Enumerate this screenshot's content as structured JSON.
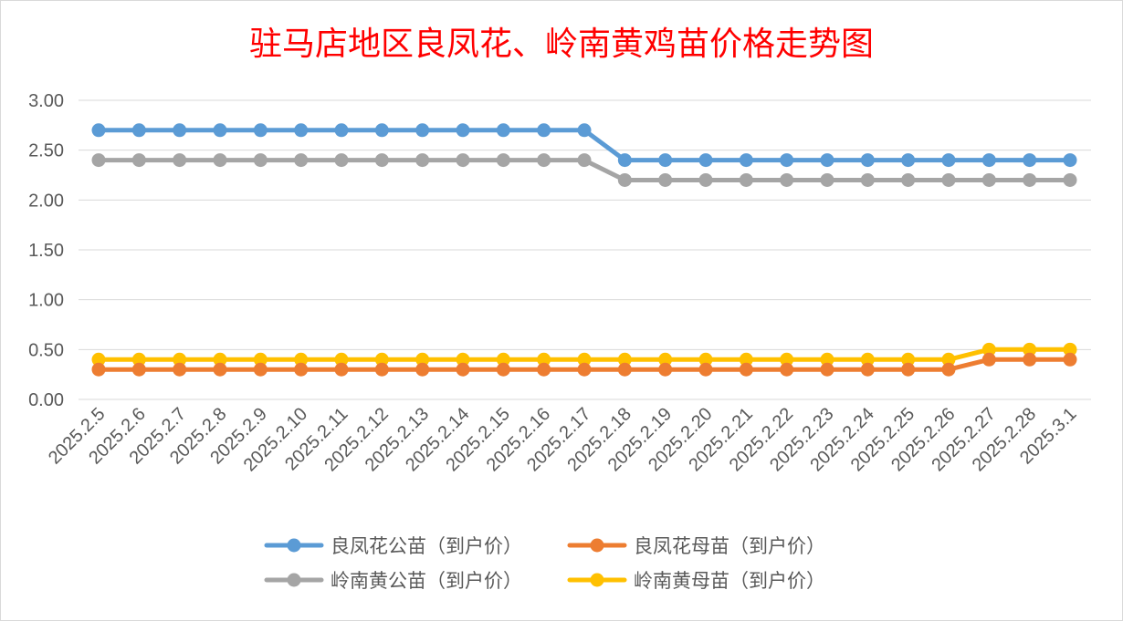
{
  "chart_data": {
    "type": "line",
    "title": "驻马店地区良凤花、岭南黄鸡苗价格走势图",
    "categories": [
      "2025.2.5",
      "2025.2.6",
      "2025.2.7",
      "2025.2.8",
      "2025.2.9",
      "2025.2.10",
      "2025.2.11",
      "2025.2.12",
      "2025.2.13",
      "2025.2.14",
      "2025.2.15",
      "2025.2.16",
      "2025.2.17",
      "2025.2.18",
      "2025.2.19",
      "2025.2.20",
      "2025.2.21",
      "2025.2.22",
      "2025.2.23",
      "2025.2.24",
      "2025.2.25",
      "2025.2.26",
      "2025.2.27",
      "2025.2.28",
      "2025.3.1"
    ],
    "ylim": [
      0,
      3
    ],
    "yticks": [
      "0.00",
      "0.50",
      "1.00",
      "1.50",
      "2.00",
      "2.50",
      "3.00"
    ],
    "grid": true,
    "legend_position": "bottom",
    "series": [
      {
        "name": "良凤花公苗（到户价）",
        "color": "#5b9bd5",
        "values": [
          2.7,
          2.7,
          2.7,
          2.7,
          2.7,
          2.7,
          2.7,
          2.7,
          2.7,
          2.7,
          2.7,
          2.7,
          2.7,
          2.4,
          2.4,
          2.4,
          2.4,
          2.4,
          2.4,
          2.4,
          2.4,
          2.4,
          2.4,
          2.4,
          2.4
        ]
      },
      {
        "name": "良凤花母苗（到户价）",
        "color": "#ed7d31",
        "values": [
          0.3,
          0.3,
          0.3,
          0.3,
          0.3,
          0.3,
          0.3,
          0.3,
          0.3,
          0.3,
          0.3,
          0.3,
          0.3,
          0.3,
          0.3,
          0.3,
          0.3,
          0.3,
          0.3,
          0.3,
          0.3,
          0.3,
          0.4,
          0.4,
          0.4
        ]
      },
      {
        "name": "岭南黄公苗（到户价）",
        "color": "#a5a5a5",
        "values": [
          2.4,
          2.4,
          2.4,
          2.4,
          2.4,
          2.4,
          2.4,
          2.4,
          2.4,
          2.4,
          2.4,
          2.4,
          2.4,
          2.2,
          2.2,
          2.2,
          2.2,
          2.2,
          2.2,
          2.2,
          2.2,
          2.2,
          2.2,
          2.2,
          2.2
        ]
      },
      {
        "name": "岭南黄母苗（到户价）",
        "color": "#ffc000",
        "values": [
          0.4,
          0.4,
          0.4,
          0.4,
          0.4,
          0.4,
          0.4,
          0.4,
          0.4,
          0.4,
          0.4,
          0.4,
          0.4,
          0.4,
          0.4,
          0.4,
          0.4,
          0.4,
          0.4,
          0.4,
          0.4,
          0.4,
          0.5,
          0.5,
          0.5
        ]
      }
    ]
  }
}
